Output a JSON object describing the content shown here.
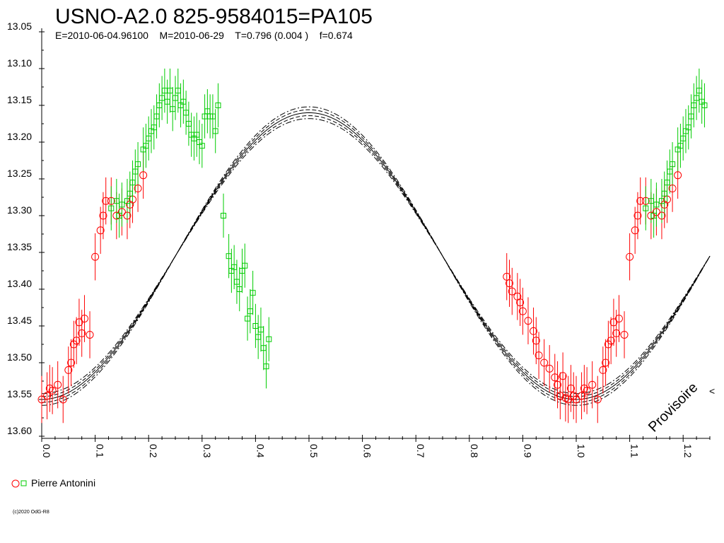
{
  "chart_data": {
    "type": "scatter",
    "title": "USNO-A2.0 825-9584015=PA105",
    "subtitle": "E=2010-06-04.96100    M=2010-06-29    T=0.796 (0.004 )    f=0.674",
    "xlim": [
      0.0,
      1.25
    ],
    "ylim": [
      13.05,
      13.6
    ],
    "y_inverted": true,
    "grid": false,
    "x_ticks": [
      "0.0",
      "0.1",
      "0.2",
      "0.3",
      "0.4",
      "0.5",
      "0.6",
      "0.7",
      "0.8",
      "0.9",
      "1.0",
      "1.1",
      "1.2"
    ],
    "y_ticks": [
      "13.05",
      "13.10",
      "13.15",
      "13.20",
      "13.25",
      "13.30",
      "13.35",
      "13.40",
      "13.45",
      "13.50",
      "13.55",
      "13.60"
    ],
    "model": {
      "mean": 13.355,
      "amplitude": 0.195,
      "min_phase": 0.0,
      "period_phase": 1.0,
      "envelope": [
        0.004,
        0.008
      ]
    },
    "legend_label": "Pierre Antonini",
    "legend_position": "bottom-left",
    "watermark": "Provisoire",
    "copyright": "(c)2020 OdG-R8",
    "series": [
      {
        "marker": "circle",
        "color": "#ff0000",
        "points": [
          [
            0.0,
            13.55
          ],
          [
            0.01,
            13.545
          ],
          [
            0.015,
            13.535
          ],
          [
            0.02,
            13.538
          ],
          [
            0.03,
            13.53
          ],
          [
            0.04,
            13.55
          ],
          [
            0.05,
            13.51
          ],
          [
            0.055,
            13.5
          ],
          [
            0.06,
            13.475
          ],
          [
            0.065,
            13.47
          ],
          [
            0.07,
            13.445
          ],
          [
            0.075,
            13.46
          ],
          [
            0.08,
            13.44
          ],
          [
            0.09,
            13.462
          ],
          [
            0.1,
            13.356
          ],
          [
            0.11,
            13.32
          ],
          [
            0.115,
            13.3
          ],
          [
            0.12,
            13.28
          ],
          [
            0.13,
            13.28
          ],
          [
            0.14,
            13.3
          ],
          [
            0.15,
            13.295
          ],
          [
            0.16,
            13.3
          ],
          [
            0.165,
            13.285
          ],
          [
            0.17,
            13.278
          ],
          [
            0.18,
            13.263
          ],
          [
            0.19,
            13.245
          ],
          [
            0.87,
            13.383
          ],
          [
            0.875,
            13.392
          ],
          [
            0.88,
            13.403
          ],
          [
            0.89,
            13.41
          ],
          [
            0.895,
            13.418
          ],
          [
            0.9,
            13.43
          ],
          [
            0.91,
            13.443
          ],
          [
            0.92,
            13.457
          ],
          [
            0.925,
            13.47
          ],
          [
            0.93,
            13.49
          ],
          [
            0.94,
            13.5
          ],
          [
            0.95,
            13.508
          ],
          [
            0.96,
            13.52
          ],
          [
            0.965,
            13.53
          ],
          [
            0.97,
            13.545
          ],
          [
            0.975,
            13.518
          ],
          [
            0.98,
            13.548
          ],
          [
            0.985,
            13.55
          ],
          [
            0.99,
            13.535
          ],
          [
            0.995,
            13.545
          ],
          [
            1.0,
            13.55
          ],
          [
            1.01,
            13.545
          ],
          [
            1.015,
            13.535
          ],
          [
            1.02,
            13.538
          ],
          [
            1.03,
            13.53
          ],
          [
            1.04,
            13.55
          ],
          [
            1.05,
            13.51
          ],
          [
            1.055,
            13.5
          ],
          [
            1.06,
            13.475
          ],
          [
            1.065,
            13.47
          ],
          [
            1.07,
            13.445
          ],
          [
            1.075,
            13.46
          ],
          [
            1.08,
            13.44
          ],
          [
            1.09,
            13.462
          ],
          [
            1.1,
            13.356
          ],
          [
            1.11,
            13.32
          ],
          [
            1.115,
            13.3
          ],
          [
            1.12,
            13.28
          ],
          [
            1.13,
            13.28
          ],
          [
            1.14,
            13.3
          ],
          [
            1.15,
            13.295
          ],
          [
            1.16,
            13.3
          ],
          [
            1.165,
            13.285
          ],
          [
            1.17,
            13.278
          ],
          [
            1.18,
            13.263
          ],
          [
            1.19,
            13.245
          ]
        ]
      },
      {
        "marker": "square",
        "color": "#00cc00",
        "points": [
          [
            0.13,
            13.29
          ],
          [
            0.14,
            13.28
          ],
          [
            0.145,
            13.3
          ],
          [
            0.15,
            13.285
          ],
          [
            0.16,
            13.28
          ],
          [
            0.165,
            13.27
          ],
          [
            0.17,
            13.255
          ],
          [
            0.175,
            13.24
          ],
          [
            0.18,
            13.23
          ],
          [
            0.19,
            13.21
          ],
          [
            0.195,
            13.205
          ],
          [
            0.2,
            13.195
          ],
          [
            0.205,
            13.185
          ],
          [
            0.21,
            13.18
          ],
          [
            0.215,
            13.165
          ],
          [
            0.22,
            13.15
          ],
          [
            0.225,
            13.14
          ],
          [
            0.23,
            13.13
          ],
          [
            0.235,
            13.145
          ],
          [
            0.24,
            13.13
          ],
          [
            0.245,
            13.155
          ],
          [
            0.25,
            13.14
          ],
          [
            0.255,
            13.13
          ],
          [
            0.26,
            13.15
          ],
          [
            0.265,
            13.145
          ],
          [
            0.27,
            13.16
          ],
          [
            0.275,
            13.175
          ],
          [
            0.28,
            13.19
          ],
          [
            0.285,
            13.195
          ],
          [
            0.29,
            13.19
          ],
          [
            0.295,
            13.2
          ],
          [
            0.3,
            13.205
          ],
          [
            0.305,
            13.165
          ],
          [
            0.31,
            13.158
          ],
          [
            0.315,
            13.165
          ],
          [
            0.32,
            13.165
          ],
          [
            0.325,
            13.185
          ],
          [
            0.33,
            13.15
          ],
          [
            0.34,
            13.3
          ],
          [
            0.35,
            13.355
          ],
          [
            0.355,
            13.375
          ],
          [
            0.36,
            13.37
          ],
          [
            0.365,
            13.39
          ],
          [
            0.37,
            13.4
          ],
          [
            0.375,
            13.375
          ],
          [
            0.38,
            13.368
          ],
          [
            0.385,
            13.44
          ],
          [
            0.39,
            13.43
          ],
          [
            0.395,
            13.405
          ],
          [
            0.4,
            13.45
          ],
          [
            0.405,
            13.465
          ],
          [
            0.41,
            13.455
          ],
          [
            0.415,
            13.48
          ],
          [
            0.42,
            13.505
          ],
          [
            0.425,
            13.468
          ],
          [
            1.13,
            13.29
          ],
          [
            1.14,
            13.28
          ],
          [
            1.145,
            13.3
          ],
          [
            1.15,
            13.285
          ],
          [
            1.16,
            13.28
          ],
          [
            1.165,
            13.27
          ],
          [
            1.17,
            13.255
          ],
          [
            1.175,
            13.24
          ],
          [
            1.18,
            13.23
          ],
          [
            1.19,
            13.21
          ],
          [
            1.195,
            13.205
          ],
          [
            1.2,
            13.195
          ],
          [
            1.205,
            13.185
          ],
          [
            1.21,
            13.18
          ],
          [
            1.215,
            13.165
          ],
          [
            1.22,
            13.15
          ],
          [
            1.225,
            13.14
          ],
          [
            1.23,
            13.13
          ],
          [
            1.235,
            13.145
          ],
          [
            1.24,
            13.15
          ]
        ]
      }
    ]
  }
}
